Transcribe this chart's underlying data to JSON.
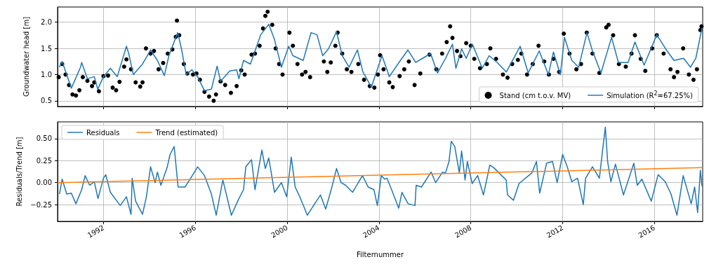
{
  "chart_data": [
    {
      "type": "line",
      "ylabel": "Groundwater head [m]",
      "xlim": [
        1990.0,
        2018.1
      ],
      "xticks": [
        1992,
        1996,
        2000,
        2004,
        2008,
        2012,
        2016
      ],
      "ylim": [
        0.39,
        2.29
      ],
      "yticks": [
        0.5,
        {
          "value": 1,
          "label": "1.0"
        },
        1.5,
        {
          "value": 2,
          "label": "2.0"
        }
      ],
      "tick_labels": "y",
      "grid": true,
      "legend": "bottom right",
      "series": [
        {
          "name": "Stand (cm t.o.v. MV)",
          "type": "scatter",
          "marker": "circle",
          "color": "#000000",
          "x": [
            1990.05,
            1990.2,
            1990.35,
            1990.5,
            1990.65,
            1990.8,
            1990.95,
            1991.1,
            1991.3,
            1991.5,
            1991.6,
            1991.8,
            1992.0,
            1992.2,
            1992.4,
            1992.55,
            1992.7,
            1992.9,
            1993.0,
            1993.2,
            1993.4,
            1993.6,
            1993.7,
            1993.85,
            1994.05,
            1994.2,
            1994.4,
            1994.6,
            1994.8,
            1995.0,
            1995.15,
            1995.2,
            1995.3,
            1995.5,
            1995.65,
            1995.9,
            1996.05,
            1996.2,
            1996.4,
            1996.6,
            1996.8,
            1996.9,
            1997.1,
            1997.3,
            1997.55,
            1997.8,
            1998.0,
            1998.15,
            1998.45,
            1998.6,
            1998.8,
            1998.95,
            1999.05,
            1999.15,
            1999.35,
            1999.5,
            1999.65,
            1999.8,
            2000.1,
            2000.25,
            2000.45,
            2000.65,
            2000.8,
            2001.0,
            2001.6,
            2001.75,
            2001.9,
            2002.1,
            2002.2,
            2002.4,
            2002.6,
            2002.8,
            2003.1,
            2003.35,
            2003.6,
            2003.8,
            2003.95,
            2004.05,
            2004.2,
            2004.45,
            2004.6,
            2004.9,
            2005.1,
            2005.3,
            2005.55,
            2005.8,
            2006.2,
            2006.5,
            2006.75,
            2006.95,
            2007.1,
            2007.2,
            2007.4,
            2007.55,
            2007.8,
            2008.0,
            2008.15,
            2008.4,
            2008.7,
            2008.85,
            2009.1,
            2009.4,
            2009.6,
            2009.8,
            2010.05,
            2010.2,
            2010.45,
            2010.7,
            2010.95,
            2011.2,
            2011.4,
            2011.6,
            2011.85,
            2012.05,
            2012.3,
            2012.6,
            2012.8,
            2013.05,
            2013.3,
            2013.6,
            2013.9,
            2014.0,
            2014.2,
            2014.45,
            2014.75,
            2015.0,
            2015.15,
            2015.4,
            2015.6,
            2015.9,
            2016.1,
            2016.4,
            2016.7,
            2016.85,
            2017.0,
            2017.25,
            2017.5,
            2017.7,
            2017.85,
            2018.0,
            2018.05
          ],
          "values": [
            0.95,
            1.2,
            1.0,
            0.8,
            0.62,
            0.6,
            0.7,
            0.95,
            0.88,
            0.78,
            0.85,
            0.68,
            0.97,
            0.98,
            0.75,
            0.7,
            0.86,
            1.15,
            1.29,
            1.1,
            0.85,
            0.77,
            0.85,
            1.5,
            1.4,
            1.45,
            1.1,
            1.22,
            1.4,
            1.48,
            1.72,
            2.03,
            1.75,
            1.2,
            1.02,
            1.0,
            1.02,
            0.9,
            0.67,
            0.58,
            0.5,
            0.62,
            0.87,
            0.8,
            0.65,
            0.78,
            1.08,
            1.0,
            1.38,
            1.4,
            1.55,
            1.88,
            2.12,
            2.2,
            1.95,
            1.5,
            1.2,
            1.0,
            1.8,
            1.55,
            1.2,
            1.0,
            1.05,
            0.95,
            1.25,
            1.05,
            1.23,
            1.55,
            1.8,
            1.4,
            1.1,
            1.05,
            1.2,
            0.9,
            0.78,
            0.75,
            1.0,
            1.37,
            1.1,
            0.85,
            0.76,
            0.97,
            1.1,
            1.25,
            0.8,
            1.02,
            1.38,
            1.1,
            1.4,
            1.62,
            1.92,
            1.7,
            1.45,
            1.35,
            1.6,
            1.55,
            1.3,
            1.12,
            1.2,
            1.5,
            1.3,
            1.0,
            0.94,
            1.2,
            1.28,
            1.4,
            1.0,
            1.2,
            1.55,
            1.25,
            1.0,
            1.3,
            1.05,
            1.78,
            1.4,
            1.1,
            1.2,
            1.8,
            1.4,
            1.03,
            1.9,
            1.95,
            1.75,
            1.2,
            1.15,
            1.4,
            1.75,
            1.3,
            1.07,
            1.5,
            1.75,
            1.4,
            1.1,
            0.95,
            1.05,
            1.5,
            1.0,
            0.9,
            1.1,
            1.85,
            1.92
          ]
        },
        {
          "name": "Simulation (R$^{2}$=67.25%)",
          "color": "#1f77b4",
          "x": [
            1990.08,
            1990.2,
            1990.6,
            1991.0,
            1991.05,
            1991.3,
            1991.6,
            1991.75,
            1992.0,
            1992.3,
            1992.6,
            1993.0,
            1993.1,
            1993.3,
            1993.7,
            1994.05,
            1994.35,
            1994.65,
            1994.85,
            1995.23,
            1995.4,
            1995.6,
            1995.85,
            1996.1,
            1996.4,
            1996.7,
            1996.95,
            1997.1,
            1997.5,
            1997.8,
            1997.9,
            1998.1,
            1998.4,
            1998.85,
            1999.2,
            1999.45,
            1999.75,
            2000.07,
            2000.25,
            2000.7,
            2001.04,
            2001.3,
            2001.55,
            2001.8,
            2002.15,
            2002.4,
            2002.7,
            2003.06,
            2003.3,
            2003.67,
            2004.13,
            2004.35,
            2004.45,
            2004.87,
            2005.26,
            2005.6,
            2005.9,
            2006.25,
            2006.55,
            2006.9,
            2007.2,
            2007.35,
            2007.6,
            2007.8,
            2008.07,
            2008.5,
            2008.8,
            2009.15,
            2009.55,
            2010.15,
            2010.5,
            2010.98,
            2011.38,
            2011.6,
            2011.9,
            2012.08,
            2012.4,
            2012.7,
            2013.06,
            2013.3,
            2013.67,
            2014.13,
            2014.43,
            2014.85,
            2015.15,
            2015.55,
            2016.1,
            2016.55,
            2016.85,
            2017.27,
            2017.57,
            2017.8,
            2018.07
          ],
          "values": [
            1.14,
            1.25,
            0.74,
            1.14,
            1.23,
            0.92,
            0.96,
            0.72,
            0.96,
            1.12,
            0.96,
            1.54,
            1.4,
            1.0,
            1.2,
            1.47,
            1.27,
            0.98,
            1.36,
            1.8,
            1.49,
            1.0,
            1.09,
            0.96,
            0.69,
            0.72,
            1.16,
            0.87,
            1.07,
            1.09,
            0.92,
            1.27,
            1.2,
            1.76,
            1.96,
            1.67,
            1.14,
            1.54,
            1.36,
            1.27,
            1.8,
            1.76,
            1.36,
            1.49,
            1.82,
            1.36,
            1.14,
            1.47,
            1.05,
            0.76,
            1.36,
            1.09,
            0.96,
            1.23,
            1.47,
            1.23,
            1.31,
            1.4,
            1.03,
            1.31,
            1.58,
            1.12,
            1.49,
            1.31,
            1.58,
            1.12,
            1.36,
            1.23,
            1.05,
            1.54,
            1.03,
            1.45,
            1.0,
            1.43,
            1.0,
            1.71,
            1.27,
            1.14,
            1.8,
            1.45,
            1.03,
            1.71,
            1.23,
            1.23,
            1.62,
            1.18,
            1.76,
            1.45,
            1.27,
            1.31,
            1.14,
            1.31,
            1.89
          ]
        }
      ]
    },
    {
      "type": "line",
      "xlabel": "Filternummer",
      "ylabel": "Residuals/Trend [m]",
      "xlim": [
        1990.0,
        2018.1
      ],
      "xticks": [
        1992,
        1996,
        2000,
        2004,
        2008,
        2012,
        2016
      ],
      "ylim": [
        -0.44,
        0.69
      ],
      "yticks": [
        {
          "value": -0.25,
          "label": "−0.25"
        },
        {
          "value": 0,
          "label": "0.00"
        },
        0.25,
        {
          "value": 0.5,
          "label": "0.50"
        }
      ],
      "grid": true,
      "legend": "top left",
      "series": [
        {
          "name": "Residuals",
          "color": "#1f77b4",
          "x": [
            1990.08,
            1990.2,
            1990.4,
            1990.6,
            1990.8,
            1991.05,
            1991.2,
            1991.4,
            1991.6,
            1991.76,
            1992.0,
            1992.1,
            1992.3,
            1992.73,
            1993.0,
            1993.2,
            1993.25,
            1993.4,
            1993.7,
            1993.87,
            1994.05,
            1994.25,
            1994.35,
            1994.5,
            1994.77,
            1994.9,
            1995.08,
            1995.25,
            1995.55,
            1995.8,
            1996.1,
            1996.4,
            1996.7,
            1996.91,
            1997.2,
            1997.57,
            1997.9,
            1998.1,
            1998.2,
            1998.45,
            1998.6,
            1998.9,
            1999.05,
            1999.2,
            1999.45,
            1999.75,
            1999.98,
            2000.18,
            2000.35,
            2000.55,
            2000.88,
            2001.2,
            2001.45,
            2001.68,
            2001.95,
            2002.15,
            2002.35,
            2002.55,
            2002.85,
            2003.28,
            2003.53,
            2003.78,
            2003.93,
            2004.1,
            2004.25,
            2004.35,
            2004.55,
            2004.86,
            2005.0,
            2005.27,
            2005.57,
            2005.62,
            2005.85,
            2006.27,
            2006.47,
            2006.77,
            2006.9,
            2007.05,
            2007.15,
            2007.3,
            2007.5,
            2007.6,
            2007.75,
            2007.85,
            2008.06,
            2008.3,
            2008.55,
            2008.83,
            2009.0,
            2009.54,
            2009.6,
            2009.86,
            2010.1,
            2010.66,
            2010.86,
            2011.0,
            2011.3,
            2011.56,
            2011.76,
            2012.0,
            2012.2,
            2012.4,
            2012.65,
            2012.9,
            2013.0,
            2013.3,
            2013.6,
            2013.76,
            2013.86,
            2013.96,
            2014.1,
            2014.3,
            2014.65,
            2015.1,
            2015.25,
            2015.45,
            2015.86,
            2016.16,
            2016.47,
            2016.72,
            2016.98,
            2017.25,
            2017.6,
            2017.75,
            2017.88,
            2018.0,
            2018.07
          ],
          "values": [
            -0.13,
            0.04,
            -0.13,
            -0.12,
            -0.24,
            -0.08,
            0.08,
            -0.03,
            0.01,
            -0.18,
            0.05,
            0.09,
            -0.11,
            -0.26,
            -0.16,
            -0.36,
            0.05,
            -0.21,
            -0.36,
            -0.16,
            0.18,
            0.0,
            0.12,
            -0.03,
            0.17,
            0.32,
            0.41,
            -0.05,
            -0.05,
            0.05,
            0.18,
            0.08,
            -0.13,
            -0.37,
            0.03,
            -0.37,
            -0.18,
            -0.08,
            0.18,
            0.26,
            -0.08,
            0.37,
            0.16,
            0.28,
            -0.11,
            0.0,
            -0.16,
            0.29,
            -0.05,
            -0.16,
            -0.37,
            -0.24,
            -0.14,
            -0.3,
            -0.05,
            0.16,
            0.0,
            -0.03,
            -0.11,
            0.08,
            -0.05,
            -0.08,
            -0.26,
            0.08,
            0.04,
            0.05,
            -0.08,
            -0.29,
            -0.11,
            -0.24,
            -0.26,
            -0.03,
            -0.05,
            0.12,
            0.0,
            0.12,
            0.11,
            0.24,
            0.47,
            0.41,
            0.11,
            0.36,
            0.03,
            0.24,
            -0.01,
            0.08,
            -0.14,
            0.2,
            0.17,
            0.03,
            -0.14,
            -0.2,
            -0.01,
            0.11,
            0.24,
            -0.12,
            0.22,
            0.24,
            0.0,
            0.32,
            0.18,
            0.01,
            0.05,
            -0.25,
            0.05,
            0.18,
            0.05,
            0.41,
            0.63,
            0.24,
            0.01,
            0.21,
            -0.14,
            0.22,
            -0.03,
            0.04,
            -0.21,
            0.09,
            0.01,
            -0.13,
            -0.37,
            0.08,
            -0.24,
            -0.05,
            -0.34,
            0.14,
            -0.04
          ]
        },
        {
          "name": "Trend (estimated)",
          "color": "#ff7f0e",
          "x": [
            1990.0,
            2018.1
          ],
          "values": [
            0.0,
            0.17
          ]
        }
      ]
    }
  ]
}
